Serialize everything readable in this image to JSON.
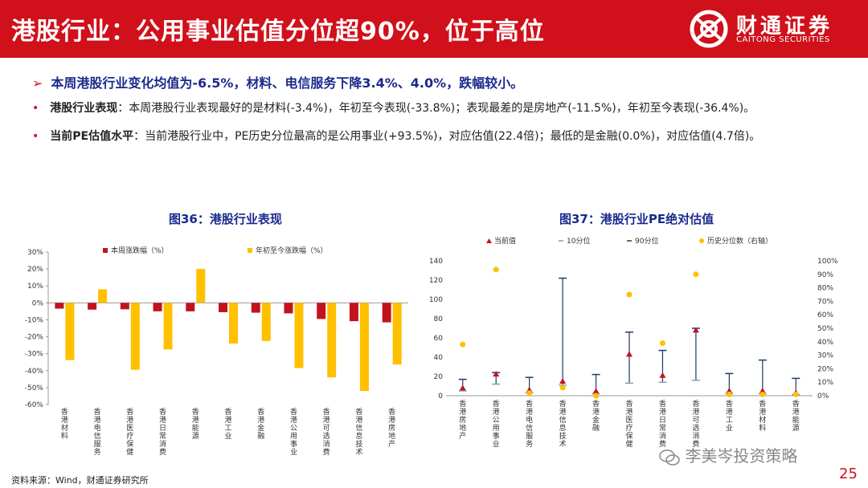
{
  "header": {
    "title": "港股行业：公用事业估值分位超90%，位于高位",
    "logo_cn": "财通证券",
    "logo_en": "CAITONG SECURITIES"
  },
  "summary": "本周港股行业变化均值为-6.5%，材料、电信服务下降3.4%、4.0%，跌幅较小。",
  "bullets": [
    {
      "label": "港股行业表现",
      "text": "：本周港股行业表现最好的是材料(-3.4%)，年初至今表现(-33.8%)；表现最差的是房地产(-11.5%)，年初至今表现(-36.4%)。"
    },
    {
      "label": "当前PE估值水平",
      "text": "：当前港股行业中，PE历史分位最高的是公用事业(+93.5%)，对应估值(22.4倍)；最低的是金融(0.0%)，对应估值(4.7倍)。"
    }
  ],
  "chart_data": [
    {
      "type": "bar",
      "title": "图36：港股行业表现",
      "categories": [
        "香港材料",
        "香港电信服务",
        "香港医疗保健",
        "香港日常消费",
        "香港能源",
        "香港工业",
        "香港金融",
        "香港公用事业",
        "香港可选消费",
        "香港信息技术",
        "香港房地产"
      ],
      "series": [
        {
          "name": "本周涨跌幅（%）",
          "color": "#c0141d",
          "values": [
            -3.4,
            -4.0,
            -3.8,
            -5.0,
            -5.0,
            -5.5,
            -5.8,
            -6.2,
            -9.5,
            -10.8,
            -11.5
          ]
        },
        {
          "name": "年初至今涨跌幅（%）",
          "color": "#ffc000",
          "values": [
            -33.8,
            8.0,
            -39.5,
            -27.5,
            20.0,
            -24.0,
            -22.5,
            -38.5,
            -44.0,
            -52.0,
            -36.4
          ]
        }
      ],
      "ylim": [
        -60,
        30
      ],
      "yticks": [
        "30%",
        "20%",
        "10%",
        "0%",
        "-10%",
        "-20%",
        "-30%",
        "-40%",
        "-50%",
        "-60%"
      ],
      "legend": "top",
      "grid": false
    },
    {
      "type": "scatter",
      "title": "图37：港股行业PE绝对估值",
      "categories": [
        "香港房地产",
        "香港公用事业",
        "香港电信服务",
        "香港信息技术",
        "香港金融",
        "香港医疗保健",
        "香港日常消费",
        "香港可选消费",
        "香港工业",
        "香港材料",
        "香港能源"
      ],
      "series": [
        {
          "name": "当前值",
          "color": "#c0141d",
          "values": [
            8,
            22.4,
            6,
            15,
            4.7,
            43,
            21,
            68,
            5,
            5,
            3
          ]
        },
        {
          "name": "10分位",
          "color": "#7f9fbf",
          "values": [
            5,
            12,
            3,
            11,
            2,
            13,
            14,
            16,
            2,
            2,
            1
          ]
        },
        {
          "name": "90分位",
          "color": "#1f3864",
          "values": [
            17,
            24,
            19,
            122,
            22,
            66,
            47,
            70,
            23,
            37,
            18
          ]
        },
        {
          "name": "历史分位数（右轴）",
          "color": "#ffc000",
          "axis": "right",
          "values": [
            38,
            93.5,
            2,
            6,
            0,
            75,
            39,
            90,
            1,
            1,
            1
          ]
        }
      ],
      "ylim": [
        0,
        140
      ],
      "yticks": [
        "140",
        "120",
        "100",
        "80",
        "60",
        "40",
        "20",
        "0"
      ],
      "y2lim": [
        0,
        100
      ],
      "y2ticks": [
        "100%",
        "90%",
        "80%",
        "70%",
        "60%",
        "50%",
        "40%",
        "30%",
        "20%",
        "10%",
        "0%"
      ],
      "legend": "top",
      "grid": false
    }
  ],
  "footer": {
    "source": "资料来源：Wind，财通证券研究所",
    "watermark": "李美岑投资策略",
    "page": "25"
  }
}
